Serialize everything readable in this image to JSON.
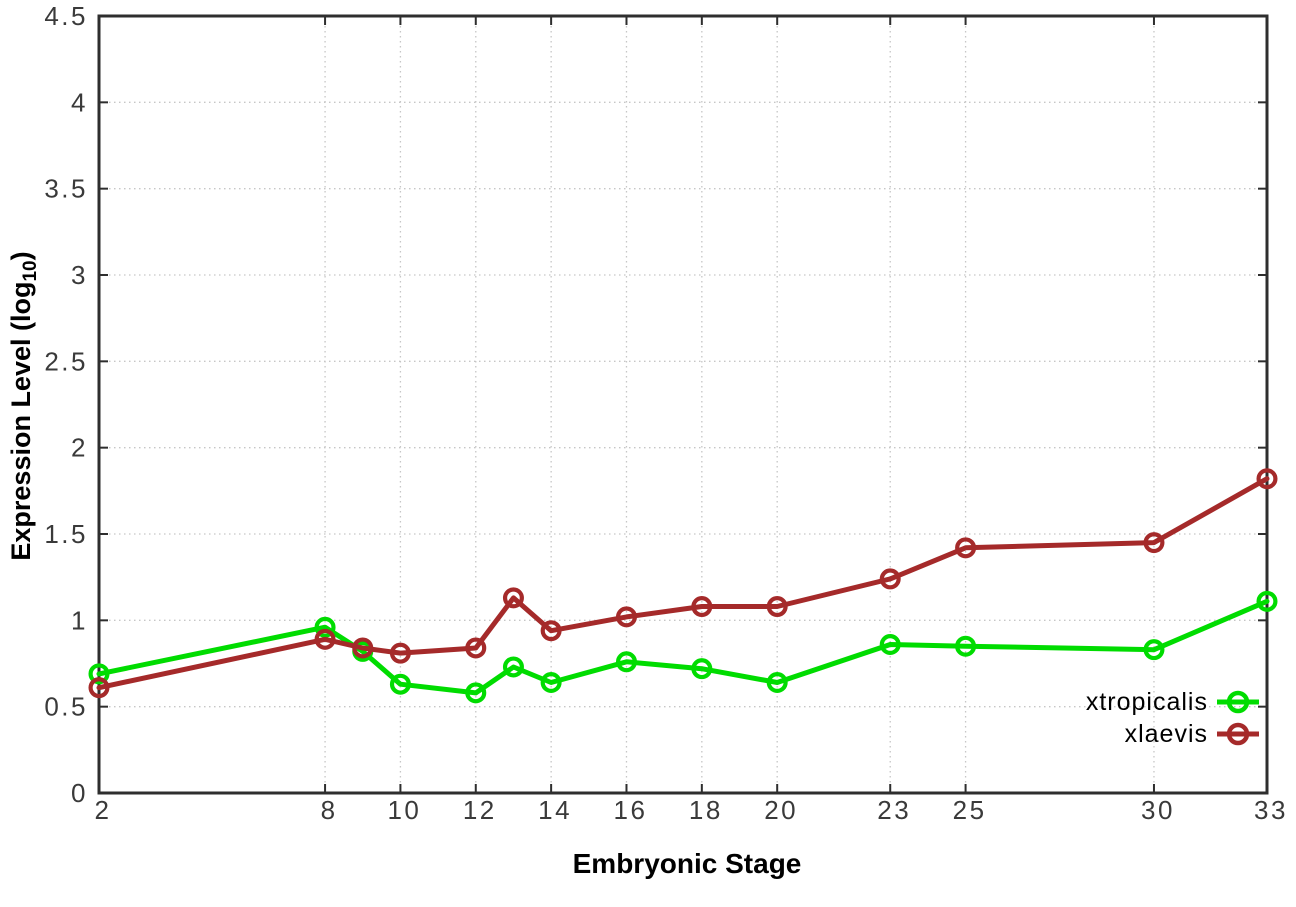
{
  "chart_data": {
    "type": "line",
    "title": "",
    "xlabel": "Embryonic Stage",
    "ylabel_prefix": "Expression Level (log",
    "ylabel_sub": "10",
    "ylabel_suffix": ")",
    "xlim": [
      2,
      33
    ],
    "ylim": [
      0,
      4.5
    ],
    "x_ticks": [
      2,
      8,
      10,
      12,
      14,
      16,
      18,
      20,
      23,
      25,
      30,
      33
    ],
    "y_ticks": [
      0,
      0.5,
      1,
      1.5,
      2,
      2.5,
      3,
      3.5,
      4,
      4.5
    ],
    "grid": "dotted",
    "legend_position": "inside-bottom-right",
    "x": [
      2,
      8,
      9,
      10,
      12,
      13,
      14,
      16,
      18,
      20,
      23,
      25,
      30,
      33
    ],
    "series": [
      {
        "name": "xtropicalis",
        "color": "#00dc00",
        "values": [
          0.69,
          0.96,
          0.82,
          0.63,
          0.58,
          0.73,
          0.64,
          0.76,
          0.72,
          0.64,
          0.86,
          0.85,
          0.83,
          1.11
        ]
      },
      {
        "name": "xlaevis",
        "color": "#a52a2a",
        "values": [
          0.61,
          0.89,
          0.84,
          0.81,
          0.84,
          1.13,
          0.94,
          1.02,
          1.08,
          1.08,
          1.24,
          1.42,
          1.45,
          1.82
        ]
      }
    ]
  },
  "colors": {
    "axis": "#2e2e2e",
    "grid": "#c6c6c6",
    "tick_label": "#3a3a3a",
    "title": "#000000",
    "background": "#ffffff"
  }
}
